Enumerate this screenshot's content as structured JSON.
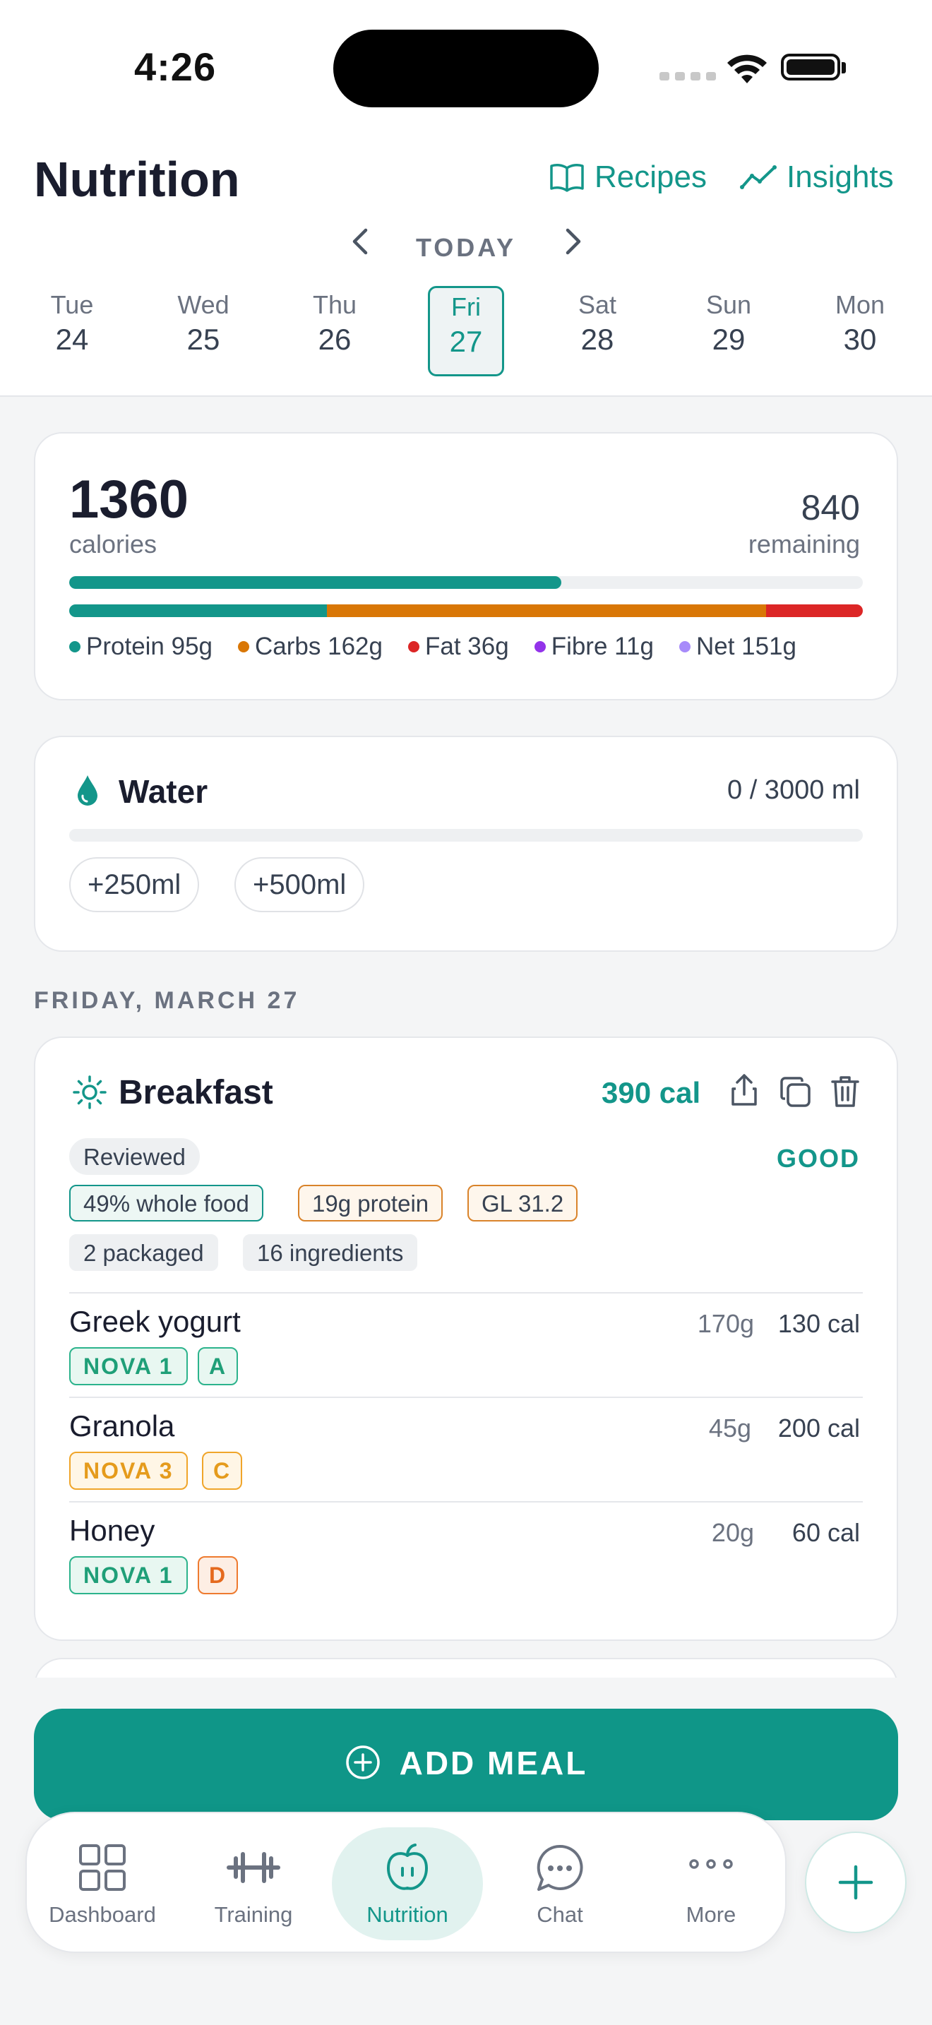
{
  "status": {
    "time": "4:26"
  },
  "header": {
    "title": "Nutrition",
    "recipes_label": "Recipes",
    "insights_label": "Insights",
    "today_label": "TODAY",
    "days": [
      {
        "name": "Tue",
        "date": "24"
      },
      {
        "name": "Wed",
        "date": "25"
      },
      {
        "name": "Thu",
        "date": "26"
      },
      {
        "name": "Fri",
        "date": "27",
        "selected": true
      },
      {
        "name": "Sat",
        "date": "28"
      },
      {
        "name": "Sun",
        "date": "29"
      },
      {
        "name": "Mon",
        "date": "30"
      }
    ]
  },
  "calories": {
    "value": "1360",
    "label": "calories",
    "remaining_value": "840",
    "remaining_label": "remaining",
    "progress": 0.62,
    "macro_split": [
      0.325,
      0.553,
      0.122
    ],
    "macros": [
      {
        "label": "Protein 95g",
        "color": "#13968a"
      },
      {
        "label": "Carbs 162g",
        "color": "#d97706"
      },
      {
        "label": "Fat 36g",
        "color": "#dc2626"
      },
      {
        "label": "Fibre 11g",
        "color": "#9333ea"
      },
      {
        "label": "Net 151g",
        "color": "#a78bfa"
      }
    ]
  },
  "water": {
    "title": "Water",
    "value": "0 / 3000 ml",
    "progress": 0,
    "btn_250": "+250ml",
    "btn_500": "+500ml"
  },
  "date_section": "FRIDAY, MARCH 27",
  "meal": {
    "title": "Breakfast",
    "calories": "390 cal",
    "status": "Reviewed",
    "grade": "GOOD",
    "tags": {
      "whole_food": "49% whole food",
      "protein": "19g protein",
      "gl": "GL 31.2",
      "packaged": "2 packaged",
      "ingredients": "16 ingredients"
    },
    "foods": [
      {
        "name": "Greek yogurt",
        "qty": "170g",
        "cal": "130 cal",
        "nova": "NOVA 1",
        "grade": "A"
      },
      {
        "name": "Granola",
        "qty": "45g",
        "cal": "200 cal",
        "nova": "NOVA 3",
        "grade": "C"
      },
      {
        "name": "Honey",
        "qty": "20g",
        "cal": "60 cal",
        "nova": "NOVA 1",
        "grade": "D"
      }
    ]
  },
  "add_meal_label": "ADD MEAL",
  "tabs": {
    "dashboard": "Dashboard",
    "training": "Training",
    "nutrition": "Nutrition",
    "chat": "Chat",
    "more": "More"
  },
  "colors": {
    "accent": "#13968a",
    "protein": "#13968a",
    "carbs": "#d97706",
    "fat": "#dc2626"
  }
}
